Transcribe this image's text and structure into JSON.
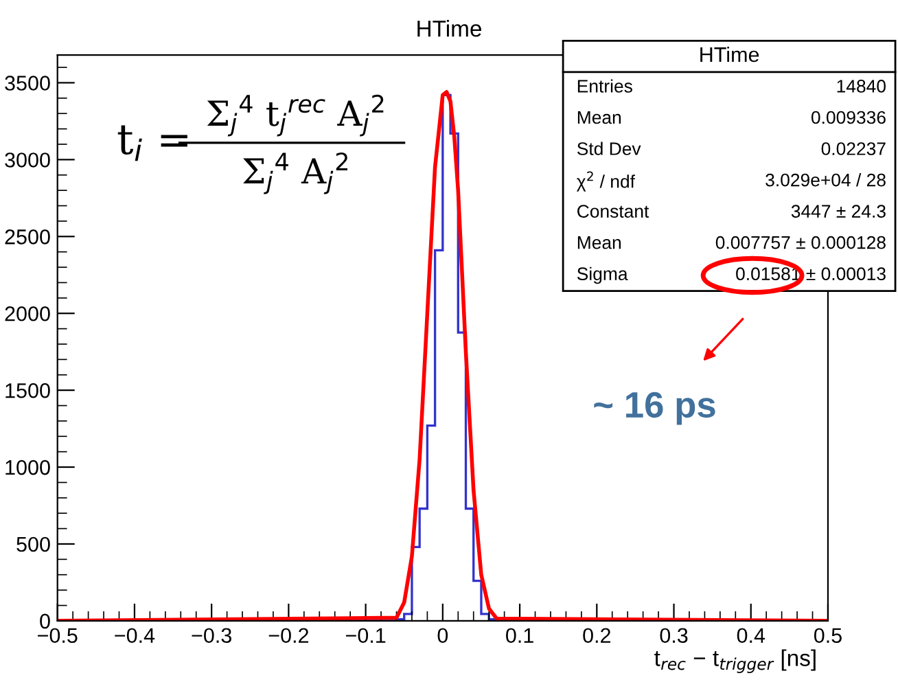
{
  "chart_data": {
    "type": "histogram",
    "title": "HTime",
    "xlabel": "t$_{rec}$ − t$_{trigger}$ [ns]",
    "bins": [
      -0.5,
      -0.49,
      -0.48,
      -0.47,
      -0.46,
      -0.45,
      -0.44,
      -0.43,
      -0.42,
      -0.41,
      -0.4,
      -0.39,
      -0.38,
      -0.37,
      -0.36,
      -0.35,
      -0.34,
      -0.33,
      -0.32,
      -0.31,
      -0.3,
      -0.29,
      -0.28,
      -0.27,
      -0.26,
      -0.25,
      -0.24,
      -0.23,
      -0.22,
      -0.21,
      -0.2,
      -0.19,
      -0.18,
      -0.17,
      -0.16,
      -0.15,
      -0.14,
      -0.13,
      -0.12,
      -0.11,
      -0.1,
      -0.09,
      -0.08,
      -0.07,
      -0.06,
      -0.05,
      -0.04,
      -0.03,
      -0.02,
      -0.01,
      0,
      0.01,
      0.02,
      0.03,
      0.04,
      0.05,
      0.06,
      0.07,
      0.08,
      0.09,
      0.1,
      0.11,
      0.12,
      0.13,
      0.14,
      0.15,
      0.16,
      0.17,
      0.18,
      0.19,
      0.2,
      0.21,
      0.22,
      0.23,
      0.24,
      0.25,
      0.26,
      0.27,
      0.28,
      0.29,
      0.3,
      0.31,
      0.32,
      0.33,
      0.34,
      0.35,
      0.36,
      0.37,
      0.38,
      0.39,
      0.4,
      0.41,
      0.42,
      0.43,
      0.44,
      0.45,
      0.46,
      0.47,
      0.48,
      0.49,
      0.5
    ],
    "values": [
      0,
      0,
      0,
      0,
      0,
      0,
      0,
      0,
      0,
      0,
      0,
      0,
      0,
      0,
      0,
      0,
      0,
      0,
      0,
      0,
      0,
      0,
      0,
      0,
      0,
      0,
      0,
      0,
      0,
      0,
      0,
      0,
      0,
      0,
      0,
      0,
      0,
      0,
      0,
      0,
      0,
      0,
      0,
      0,
      10,
      45,
      480,
      730,
      1270,
      2410,
      3420,
      3170,
      1875,
      730,
      260,
      45,
      10,
      10,
      10,
      10,
      0,
      0,
      0,
      0,
      0,
      0,
      0,
      0,
      0,
      0,
      0,
      0,
      0,
      0,
      0,
      0,
      0,
      0,
      0,
      0,
      0,
      0,
      0,
      0,
      0,
      0,
      0,
      0,
      0,
      0,
      0,
      0,
      0,
      0,
      0,
      0,
      0,
      0,
      0,
      0
    ],
    "color": "#3333cc",
    "series": [
      {
        "type": "line",
        "color": "#ff0000",
        "x": [
          -0.5,
          -0.06,
          -0.05,
          -0.04,
          -0.03,
          -0.02,
          -0.01,
          0,
          0.005,
          0.01,
          0.015,
          0.02,
          0.03,
          0.04,
          0.05,
          0.06,
          0.07,
          0.5
        ],
        "values": [
          0,
          20,
          120,
          420,
          1050,
          2000,
          2950,
          3420,
          3440,
          3380,
          3150,
          2800,
          1750,
          850,
          300,
          80,
          15,
          0
        ]
      }
    ],
    "xlim": [
      -0.5,
      0.5
    ],
    "ylim": [
      0,
      3680
    ],
    "xticks": [
      {
        "value": -0.5,
        "label": "−0.5"
      },
      {
        "value": -0.4,
        "label": "−0.4"
      },
      {
        "value": -0.3,
        "label": "−0.3"
      },
      {
        "value": -0.2,
        "label": "−0.2"
      },
      {
        "value": -0.1,
        "label": "−0.1"
      },
      0,
      0.1,
      0.2,
      0.3,
      0.4,
      0.5
    ],
    "yticks": [
      0,
      500,
      1000,
      1500,
      2000,
      2500,
      3000,
      3500
    ],
    "grid": false,
    "legend": false,
    "annotations": [
      "HTime",
      "Entries",
      "14840",
      "Mean",
      "0.009336",
      "Std Dev",
      "0.02237",
      "χ$^{2}$ / ndf",
      "3.029e+04 / 28",
      "Constant",
      "3447 ± 24.3",
      "Mean",
      "0.007757 ± 0.000128",
      "Sigma",
      "0.01581 ± 0.00013",
      "t$_{i}$ =",
      "Σ$_{j}$$^{4}$ t$_{j}$$^{rec}$ A$_{j}$$^{2}$",
      "Σ$_{j}$$^{4}$ A$_{j}$$^{2}$",
      "~ 16 ps"
    ]
  }
}
